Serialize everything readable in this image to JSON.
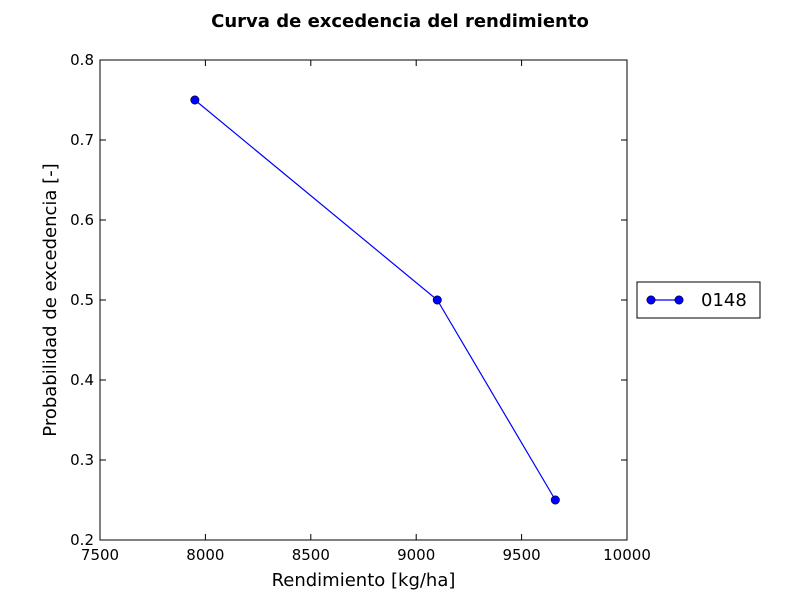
{
  "chart_data": {
    "type": "line",
    "title": "Curva de excedencia del rendimiento",
    "xlabel": "Rendimiento [kg/ha]",
    "ylabel": "Probabilidad de excedencia [-]",
    "xlim": [
      7500,
      10000
    ],
    "ylim": [
      0.2,
      0.8
    ],
    "xticks": [
      7500,
      8000,
      8500,
      9000,
      9500,
      10000
    ],
    "xtick_labels": [
      "7500",
      "8000",
      "8500",
      "9000",
      "9500",
      "10000"
    ],
    "yticks": [
      0.2,
      0.3,
      0.4,
      0.5,
      0.6,
      0.7,
      0.8
    ],
    "ytick_labels": [
      "0.2",
      "0.3",
      "0.4",
      "0.5",
      "0.6",
      "0.7",
      "0.8"
    ],
    "grid": false,
    "legend_position": "outside-right",
    "series": [
      {
        "name": "0148",
        "color": "#0000ff",
        "marker": "circle",
        "x": [
          7950,
          9100,
          9660
        ],
        "y": [
          0.75,
          0.5,
          0.25
        ]
      }
    ]
  }
}
